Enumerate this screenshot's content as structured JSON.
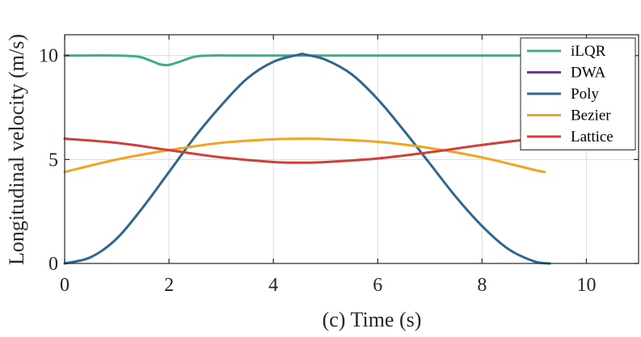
{
  "chart_data": {
    "type": "line",
    "title": "",
    "xlabel": "(c) Time (s)",
    "ylabel": "Longitudinal velocity (m/s)",
    "xlim": [
      0,
      11
    ],
    "ylim": [
      0,
      11
    ],
    "xticks": [
      0,
      2,
      4,
      6,
      8,
      10
    ],
    "yticks": [
      0,
      5,
      10
    ],
    "xtick_labels": [
      "0",
      "2",
      "4",
      "6",
      "8",
      "10"
    ],
    "ytick_labels": [
      "0",
      "5",
      "10"
    ],
    "grid": true,
    "legend_position": "top-right",
    "series": [
      {
        "name": "iLQR",
        "color": "#3bb07f",
        "x": [
          0,
          1.0,
          1.4,
          1.6,
          1.8,
          1.9,
          2.0,
          2.2,
          2.5,
          2.8,
          3.2,
          4,
          6,
          8,
          9.3
        ],
        "y": [
          10,
          10,
          9.95,
          9.8,
          9.6,
          9.55,
          9.55,
          9.7,
          9.95,
          10,
          10,
          10,
          10,
          10,
          10
        ]
      },
      {
        "name": "DWA",
        "color": "#6a3d8f",
        "x": [],
        "y": []
      },
      {
        "name": "Poly",
        "color": "#2e6891",
        "x": [
          0,
          0.5,
          1,
          1.5,
          2,
          2.5,
          3,
          3.5,
          4,
          4.5,
          4.6,
          5,
          5.5,
          6,
          6.5,
          7,
          7.5,
          8,
          8.5,
          9,
          9.3
        ],
        "y": [
          0,
          0.3,
          1.2,
          2.7,
          4.4,
          6.1,
          7.6,
          8.9,
          9.7,
          10.05,
          10.05,
          9.8,
          9.1,
          7.9,
          6.4,
          4.8,
          3.2,
          1.8,
          0.7,
          0.1,
          0
        ]
      },
      {
        "name": "Bezier",
        "color": "#f0a520",
        "x": [
          0,
          1,
          2,
          3,
          4,
          4.6,
          5,
          6,
          7,
          8,
          9,
          9.2
        ],
        "y": [
          4.4,
          5.0,
          5.45,
          5.8,
          5.97,
          6.0,
          5.98,
          5.85,
          5.55,
          5.1,
          4.5,
          4.4
        ]
      },
      {
        "name": "Lattice",
        "color": "#d0403a",
        "x": [
          0,
          1,
          2,
          3,
          4,
          4.6,
          5,
          6,
          7,
          8,
          9,
          9.3
        ],
        "y": [
          6.0,
          5.8,
          5.45,
          5.1,
          4.88,
          4.85,
          4.88,
          5.05,
          5.35,
          5.7,
          6.0,
          6.05
        ]
      }
    ]
  }
}
